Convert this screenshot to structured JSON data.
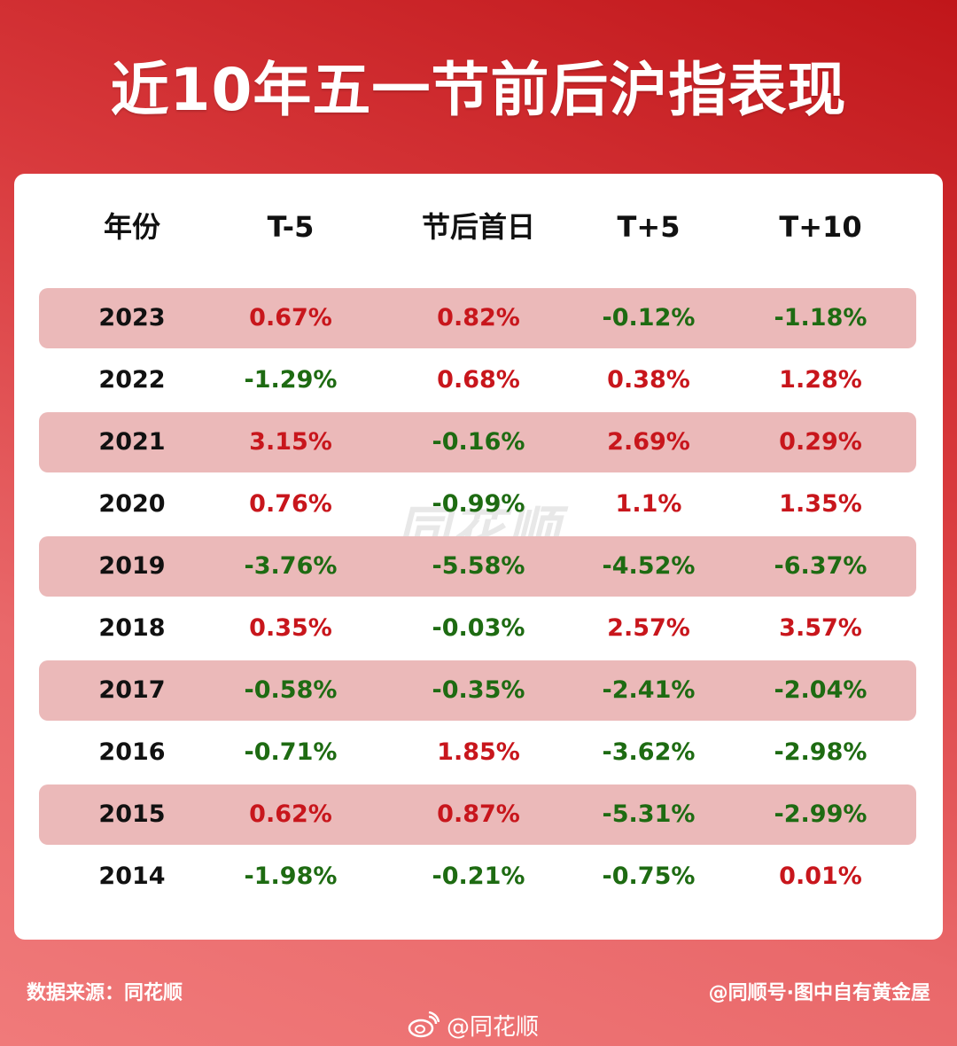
{
  "title": "近10年五一节前后沪指表现",
  "watermark": "同花顺",
  "chart_data": {
    "type": "table",
    "title": "近10年五一节前后沪指表现",
    "columns": [
      "年份",
      "T-5",
      "节后首日",
      "T+5",
      "T+10"
    ],
    "rows": [
      [
        "2023",
        "0.67%",
        "0.82%",
        "-0.12%",
        "-1.18%"
      ],
      [
        "2022",
        "-1.29%",
        "0.68%",
        "0.38%",
        "1.28%"
      ],
      [
        "2021",
        "3.15%",
        "-0.16%",
        "2.69%",
        "0.29%"
      ],
      [
        "2020",
        "0.76%",
        "-0.99%",
        "1.1%",
        "1.35%"
      ],
      [
        "2019",
        "-3.76%",
        "-5.58%",
        "-4.52%",
        "-6.37%"
      ],
      [
        "2018",
        "0.35%",
        "-0.03%",
        "2.57%",
        "3.57%"
      ],
      [
        "2017",
        "-0.58%",
        "-0.35%",
        "-2.41%",
        "-2.04%"
      ],
      [
        "2016",
        "-0.71%",
        "1.85%",
        "-3.62%",
        "-2.98%"
      ],
      [
        "2015",
        "0.62%",
        "0.87%",
        "-5.31%",
        "-2.99%"
      ],
      [
        "2014",
        "-1.98%",
        "-0.21%",
        "-0.75%",
        "0.01%"
      ]
    ]
  },
  "colors": {
    "positive": "#c8161c",
    "negative": "#1e6b12",
    "row_shade": "#ebb9b9",
    "background_top": "#c0161a",
    "background_bottom": "#f07a7a"
  },
  "footer": {
    "source": "数据来源：同花顺",
    "credit": "@同顺号·图中自有黄金屋",
    "weibo_handle": "@同花顺"
  }
}
